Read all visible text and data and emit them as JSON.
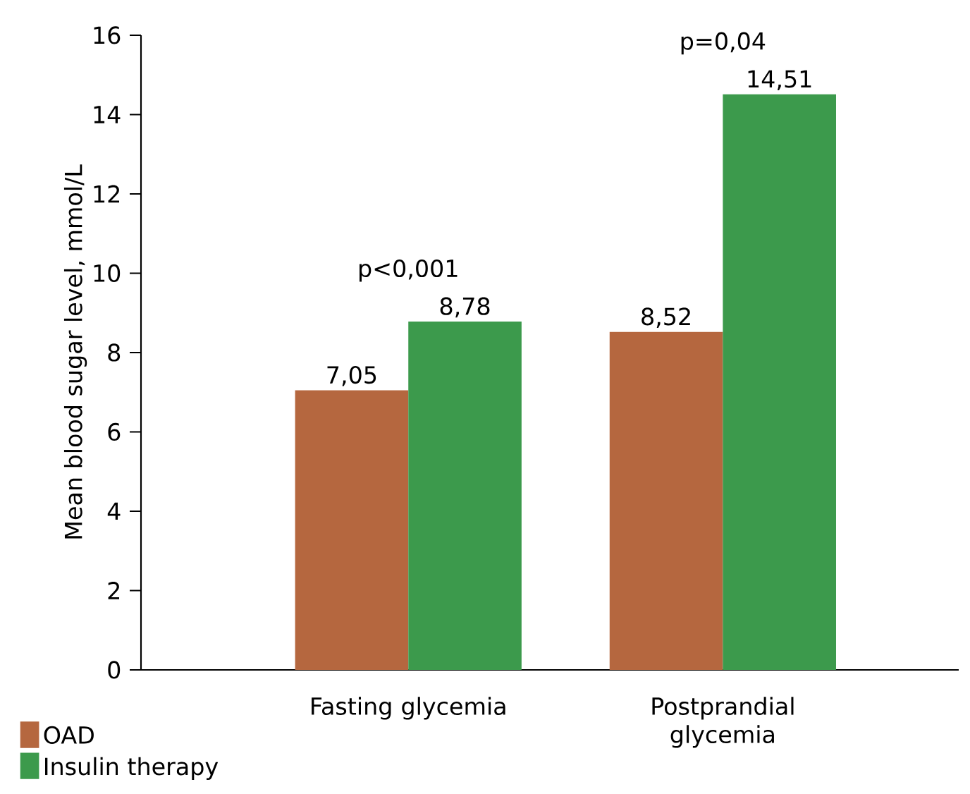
{
  "chart_data": {
    "type": "bar",
    "ylabel": "Mean blood sugar level, mmol/L",
    "categories": [
      "Fasting glycemia",
      "Postprandial glycemia"
    ],
    "series": [
      {
        "name": "OAD",
        "color": "#b5673f",
        "values": [
          7.05,
          8.52
        ],
        "value_labels": [
          "7,05",
          "8,52"
        ]
      },
      {
        "name": "Insulin therapy",
        "color": "#3c9a4c",
        "values": [
          8.78,
          14.51
        ],
        "value_labels": [
          "8,78",
          "14,51"
        ]
      }
    ],
    "annotations": [
      "p<0,001",
      "p=0,04"
    ],
    "ylim": [
      0,
      16
    ],
    "yticks": [
      0,
      2,
      4,
      6,
      8,
      10,
      12,
      14,
      16
    ],
    "legend": "bottom left"
  }
}
